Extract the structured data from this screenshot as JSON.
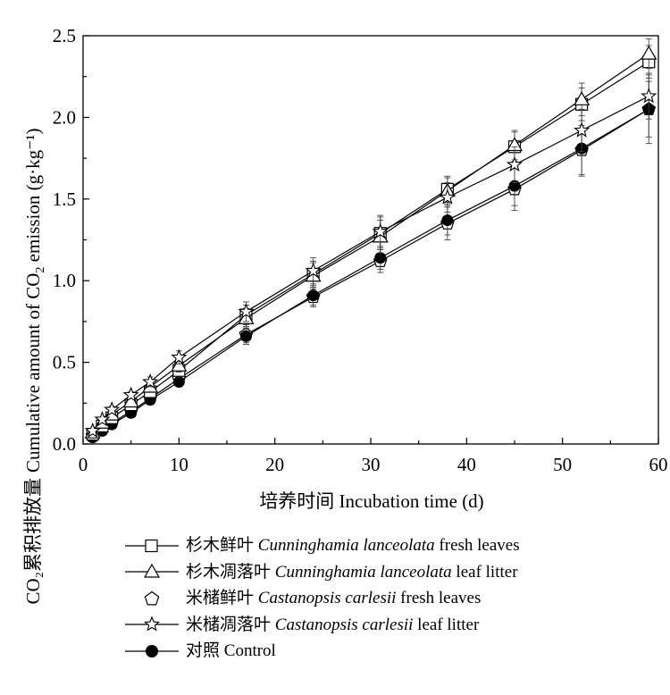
{
  "chart_data": {
    "type": "line",
    "xlabel": "培养时间 Incubation time (d)",
    "ylabel": {
      "zh": "CO₂累积排放量",
      "en_prefix": "Cumulative amount of CO",
      "en_sub": "2",
      "en_suffix": " emission (g·kg⁻¹)"
    },
    "xlim": [
      0,
      60
    ],
    "ylim": [
      0,
      2.5
    ],
    "x_ticks": [
      0,
      10,
      20,
      30,
      40,
      50,
      60
    ],
    "x_tick_labels": [
      "0",
      "10",
      "20",
      "30",
      "40",
      "50",
      "60"
    ],
    "y_ticks": [
      0,
      0.5,
      1.0,
      1.5,
      2.0,
      2.5
    ],
    "y_tick_labels": [
      "0.0",
      "0.5",
      "1.0",
      "1.5",
      "2.0",
      "2.5"
    ],
    "grid": false,
    "legend_position": "bottom",
    "x": [
      1,
      2,
      3,
      5,
      7,
      10,
      17,
      24,
      31,
      38,
      45,
      52,
      59
    ],
    "series": [
      {
        "name_zh": "杉木鲜叶",
        "name_sci": "Cunninghamia lanceolata",
        "name_rest": "fresh leaves",
        "marker": "square",
        "values": [
          0.06,
          0.11,
          0.16,
          0.24,
          0.32,
          0.45,
          0.79,
          1.04,
          1.29,
          1.56,
          1.82,
          2.08,
          2.34
        ],
        "errors": [
          0.01,
          0.01,
          0.02,
          0.02,
          0.03,
          0.04,
          0.06,
          0.08,
          0.1,
          0.08,
          0.09,
          0.1,
          0.1
        ]
      },
      {
        "name_zh": "杉木凋落叶",
        "name_sci": "Cunninghamia lanceolata",
        "name_rest": "leaf litter",
        "marker": "triangle",
        "values": [
          0.07,
          0.13,
          0.18,
          0.26,
          0.35,
          0.48,
          0.77,
          1.03,
          1.27,
          1.55,
          1.83,
          2.11,
          2.39
        ],
        "errors": [
          0.01,
          0.01,
          0.02,
          0.02,
          0.03,
          0.04,
          0.06,
          0.08,
          0.1,
          0.08,
          0.09,
          0.1,
          0.09
        ]
      },
      {
        "name_zh": "米槠鲜叶",
        "name_sci": "Castanopsis carlesii",
        "name_rest": "fresh leaves",
        "marker": "pentagon",
        "values": [
          0.05,
          0.09,
          0.13,
          0.2,
          0.28,
          0.4,
          0.67,
          0.9,
          1.12,
          1.35,
          1.56,
          1.8,
          2.05
        ],
        "errors": [
          0.01,
          0.01,
          0.02,
          0.02,
          0.03,
          0.03,
          0.05,
          0.06,
          0.07,
          0.1,
          0.13,
          0.15,
          0.17
        ]
      },
      {
        "name_zh": "米槠凋落叶",
        "name_sci": "Castanopsis carlesii",
        "name_rest": "leaf litter",
        "marker": "star",
        "values": [
          0.08,
          0.15,
          0.21,
          0.3,
          0.38,
          0.53,
          0.81,
          1.06,
          1.3,
          1.51,
          1.71,
          1.92,
          2.13
        ],
        "errors": [
          0.01,
          0.01,
          0.02,
          0.02,
          0.03,
          0.04,
          0.06,
          0.08,
          0.1,
          0.09,
          0.11,
          0.13,
          0.14
        ]
      },
      {
        "name_zh": "对照",
        "name_sci": "",
        "name_rest": "Control",
        "marker": "filled-circle",
        "values": [
          0.04,
          0.08,
          0.12,
          0.19,
          0.27,
          0.38,
          0.66,
          0.91,
          1.14,
          1.37,
          1.58,
          1.81,
          2.05
        ],
        "errors": [
          0.01,
          0.01,
          0.01,
          0.02,
          0.02,
          0.03,
          0.05,
          0.06,
          0.07,
          0.09,
          0.12,
          0.17,
          0.21
        ]
      }
    ]
  }
}
